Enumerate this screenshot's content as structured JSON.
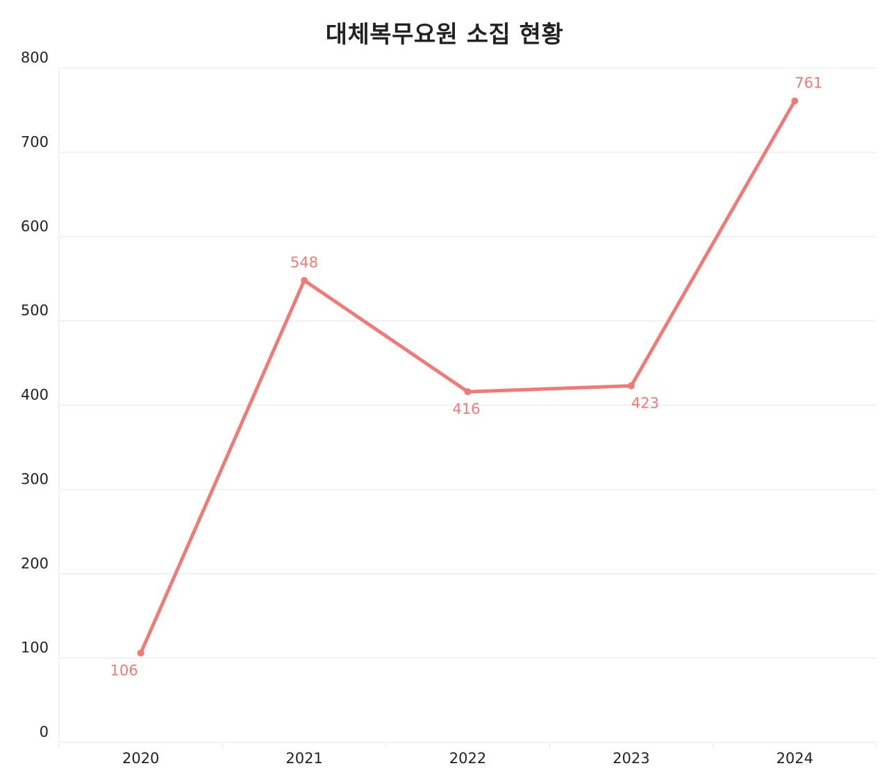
{
  "chart_data": {
    "type": "line",
    "title": "대체복무요원 소집 현황",
    "xlabel": "",
    "ylabel": "",
    "categories": [
      "2020",
      "2021",
      "2022",
      "2023",
      "2024"
    ],
    "series": [
      {
        "values": [
          106,
          548,
          416,
          423,
          761
        ]
      }
    ],
    "ylim": [
      0,
      800
    ],
    "yticks": [
      0,
      100,
      200,
      300,
      400,
      500,
      600,
      700,
      800
    ],
    "data_label_positions": [
      "below",
      "above",
      "below",
      "below",
      "above"
    ],
    "grid": true,
    "legend": "none",
    "colors": {
      "line": "#EE7B78",
      "grid": "#EDEDED",
      "axis_text": "#222222",
      "title": "#222222"
    }
  }
}
